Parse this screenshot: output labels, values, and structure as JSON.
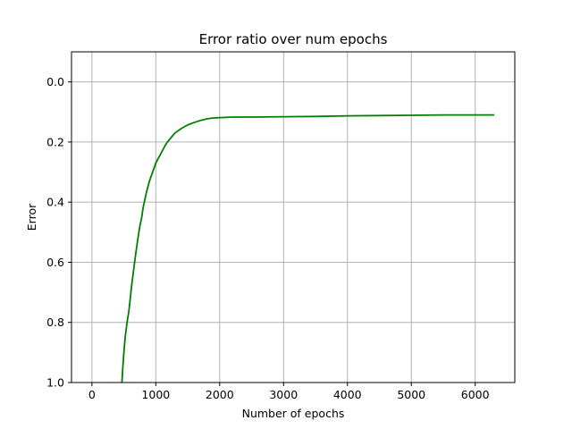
{
  "chart_data": {
    "type": "line",
    "title": "Error ratio over num epochs",
    "xlabel": "Number of epochs",
    "ylabel": "Error",
    "xlim": [
      -320,
      6620
    ],
    "ylim": [
      1.0,
      -0.1
    ],
    "y_inverted": true,
    "grid": true,
    "x_ticks": [
      0,
      1000,
      2000,
      3000,
      4000,
      5000,
      6000
    ],
    "x_tick_labels": [
      "0",
      "1000",
      "2000",
      "3000",
      "4000",
      "5000",
      "6000"
    ],
    "y_ticks": [
      0.0,
      0.2,
      0.4,
      0.6,
      0.8,
      1.0
    ],
    "y_tick_labels": [
      "0.0",
      "0.2",
      "0.4",
      "0.6",
      "0.8",
      "1.0"
    ],
    "series": [
      {
        "color": "#008000",
        "x": [
          470,
          480,
          500,
          520,
          550,
          580,
          600,
          620,
          650,
          680,
          700,
          720,
          750,
          780,
          800,
          850,
          900,
          950,
          1000,
          1050,
          1100,
          1150,
          1200,
          1300,
          1400,
          1500,
          1600,
          1700,
          1800,
          1900,
          2000,
          2200,
          2500,
          3000,
          3500,
          4000,
          4500,
          5000,
          5500,
          6000,
          6300
        ],
        "y": [
          1.0,
          0.96,
          0.9,
          0.85,
          0.8,
          0.76,
          0.72,
          0.68,
          0.63,
          0.58,
          0.55,
          0.52,
          0.48,
          0.45,
          0.42,
          0.37,
          0.33,
          0.3,
          0.27,
          0.25,
          0.23,
          0.21,
          0.195,
          0.17,
          0.155,
          0.143,
          0.135,
          0.128,
          0.123,
          0.12,
          0.119,
          0.117,
          0.117,
          0.116,
          0.115,
          0.113,
          0.112,
          0.111,
          0.11,
          0.11,
          0.11
        ]
      }
    ]
  }
}
